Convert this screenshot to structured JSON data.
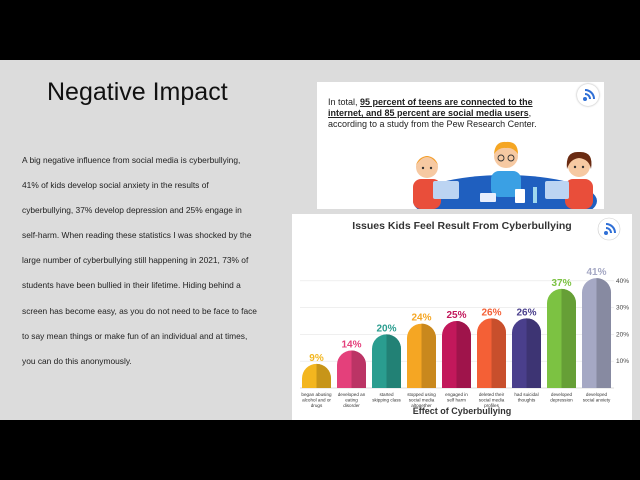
{
  "slide": {
    "title": "Negative Impact",
    "body": "A big negative influence from social media is cyberbullying, 41% of kids develop social anxiety in the results of cyberbullying, 37% develop depression and 25% engage in self-harm. When reading these statistics I was shocked by the large number of cyberbullying still happening in 2021, 73% of students have been bullied in their lifetime. Hiding behind a screen has become easy, as you do not need to be face to face to say mean things or make fun of an individual and at times, you can do this anonymously."
  },
  "info_card": {
    "prefix": "In total, ",
    "highlight": "95 percent of teens are connected to the internet, and 85 percent are social media users",
    "suffix": ", according to a study from the Pew Research Center.",
    "icon": "wifi-icon"
  },
  "chart_data": {
    "type": "bar",
    "title": "Issues Kids Feel Result From Cyberbullying",
    "xlabel": "Effect of Cyberbullying",
    "ylabel": "",
    "ylim": [
      0,
      50
    ],
    "ytick_labels": [
      "10%",
      "20%",
      "30%",
      "40%"
    ],
    "ytick_values": [
      10,
      20,
      30,
      40
    ],
    "categories": [
      "began abusing alcohol and or drugs",
      "developed an eating disorder",
      "started skipping class",
      "stopped using social media altogether",
      "engaged in self harm",
      "deleted their social media profiles",
      "had suicidal thoughts",
      "developed depression",
      "developed social anxiety"
    ],
    "values": [
      9,
      14,
      20,
      24,
      25,
      26,
      26,
      37,
      41
    ],
    "value_labels": [
      "9%",
      "14%",
      "20%",
      "24%",
      "25%",
      "26%",
      "26%",
      "37%",
      "41%"
    ],
    "colors": [
      "#f3b61f",
      "#e4407b",
      "#2a9d8f",
      "#f5a623",
      "#c2185b",
      "#f46036",
      "#4a3f8c",
      "#7cc242",
      "#a5a8c4"
    ],
    "grid": true,
    "legend": "none",
    "icon": "wifi-icon"
  }
}
